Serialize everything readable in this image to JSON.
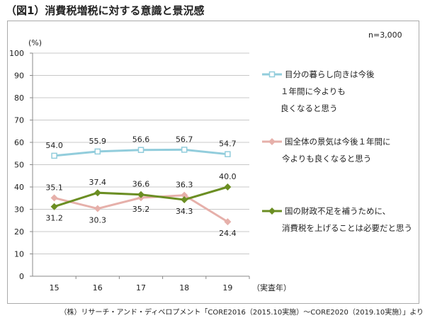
{
  "title": "（図1）消費税増税に対する意識と景況感",
  "source": "（株）リサーチ・アンド・ディベロプメント「CORE2016（2015.10実施）～CORE2020（2019.10実施）」より",
  "chart_data": {
    "type": "line",
    "note": "n=3,000",
    "ylabel": "(%)",
    "xlabel": "（実査年）",
    "ylim": [
      0,
      100
    ],
    "yticks": [
      0,
      10,
      20,
      30,
      40,
      50,
      60,
      70,
      80,
      90,
      100
    ],
    "categories": [
      "15",
      "16",
      "17",
      "18",
      "19"
    ],
    "grid": true,
    "legend": "right",
    "series": [
      {
        "name": "目分の暮らし向きは今後\n１年間に今よりも\n良くなると思う",
        "color": "#92CDDC",
        "marker": "square",
        "values": [
          54.0,
          55.9,
          56.6,
          56.7,
          54.7
        ],
        "label_pos": [
          "above",
          "above",
          "above",
          "above",
          "above"
        ]
      },
      {
        "name": "国全体の景気は今後１年間に\n今よりも良くなると思う",
        "color": "#E6B0AA",
        "marker": "diamond",
        "values": [
          35.1,
          30.3,
          35.2,
          36.3,
          24.4
        ],
        "label_pos": [
          "above",
          "below",
          "below",
          "above",
          "below"
        ]
      },
      {
        "name": "国の財政不足を補うために、\n消費税を上げることは必要だと思う",
        "color": "#6B8E23",
        "marker": "diamond",
        "values": [
          31.2,
          37.4,
          36.6,
          34.3,
          40.0
        ],
        "label_pos": [
          "below",
          "above",
          "above",
          "below",
          "above"
        ]
      }
    ]
  }
}
